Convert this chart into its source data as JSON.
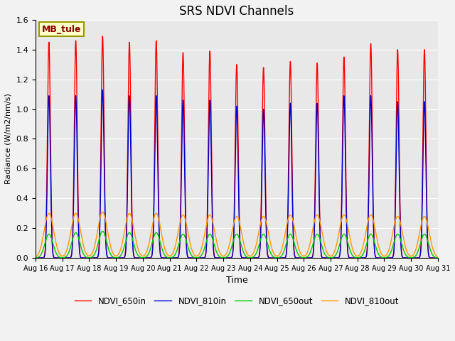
{
  "title": "SRS NDVI Channels",
  "xlabel": "Time",
  "ylabel": "Radiance (W/m2/nm/s)",
  "ylim": [
    0,
    1.6
  ],
  "plot_bg_color": "#e8e8e8",
  "fig_bg_color": "#f2f2f2",
  "annotation_text": "MB_tule",
  "annotation_color": "#8B0000",
  "annotation_bg": "#ffffcc",
  "annotation_border": "#999900",
  "legend_entries": [
    "NDVI_650in",
    "NDVI_810in",
    "NDVI_650out",
    "NDVI_810out"
  ],
  "line_colors": [
    "#ff0000",
    "#0000cc",
    "#00cc00",
    "#ff9900"
  ],
  "n_days": 15,
  "peaks_650in": [
    1.45,
    1.46,
    1.49,
    1.45,
    1.46,
    1.38,
    1.39,
    1.3,
    1.28,
    1.32,
    1.31,
    1.35,
    1.44,
    1.4,
    1.4
  ],
  "peaks_810in": [
    1.09,
    1.09,
    1.13,
    1.09,
    1.09,
    1.06,
    1.06,
    1.02,
    1.0,
    1.04,
    1.04,
    1.09,
    1.09,
    1.05,
    1.05
  ],
  "peaks_650out": [
    0.16,
    0.17,
    0.18,
    0.17,
    0.17,
    0.16,
    0.16,
    0.16,
    0.16,
    0.16,
    0.16,
    0.16,
    0.16,
    0.16,
    0.16
  ],
  "peaks_810out": [
    0.3,
    0.3,
    0.31,
    0.3,
    0.3,
    0.29,
    0.29,
    0.28,
    0.28,
    0.29,
    0.29,
    0.29,
    0.29,
    0.28,
    0.28
  ],
  "tick_labels": [
    "Aug 16",
    "Aug 17",
    "Aug 18",
    "Aug 19",
    "Aug 20",
    "Aug 21",
    "Aug 22",
    "Aug 23",
    "Aug 24",
    "Aug 25",
    "Aug 26",
    "Aug 27",
    "Aug 28",
    "Aug 29",
    "Aug 30",
    "Aug 31"
  ],
  "grid_color": "#ffffff",
  "linewidth_in": 1.0,
  "linewidth_out": 1.0
}
